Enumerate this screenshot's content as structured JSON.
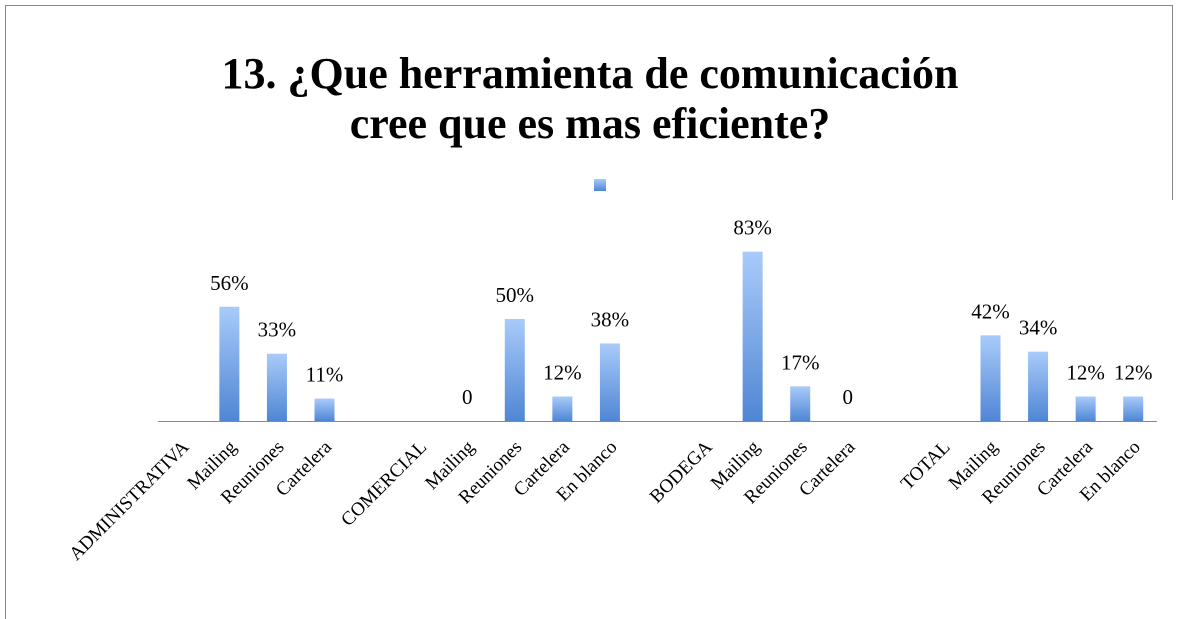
{
  "chart_data": {
    "type": "bar",
    "title": [
      "13. ¿Que herramienta de comunicación",
      "cree que es mas eficiente?"
    ],
    "categories": [
      "ADMINISTRATIVA",
      "Mailing",
      "Reuniones",
      "Cartelera",
      null,
      "COMERCIAL",
      "Mailing",
      "Reuniones",
      "Cartelera",
      "En blanco",
      null,
      "BODEGA",
      "Mailing",
      "Reuniones",
      "Cartelera",
      null,
      "TOTAL",
      "Mailing",
      "Reuniones",
      "Cartelera",
      "En blanco"
    ],
    "values": [
      null,
      56,
      33,
      11,
      null,
      null,
      0,
      50,
      12,
      38,
      null,
      null,
      83,
      17,
      0,
      null,
      null,
      42,
      34,
      12,
      12
    ],
    "value_labels": [
      null,
      "56%",
      "33%",
      "11%",
      null,
      null,
      "0",
      "50%",
      "12%",
      "38%",
      null,
      null,
      "83%",
      "17%",
      "0",
      null,
      null,
      "42%",
      "34%",
      "12%",
      "12%"
    ],
    "color": "#4f86d4"
  }
}
